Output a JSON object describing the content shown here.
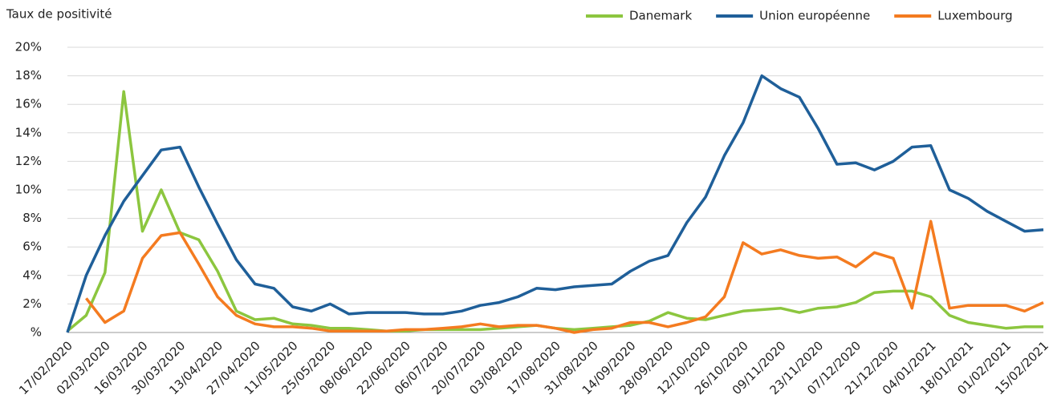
{
  "chart_data": {
    "type": "line",
    "ylabel": "Taux de positivité",
    "categories": [
      "17/02/2020",
      null,
      "02/03/2020",
      null,
      "16/03/2020",
      null,
      "30/03/2020",
      null,
      "13/04/2020",
      null,
      "27/04/2020",
      null,
      "11/05/2020",
      null,
      "25/05/2020",
      null,
      "08/06/2020",
      null,
      "22/06/2020",
      null,
      "06/07/2020",
      null,
      "20/07/2020",
      null,
      "03/08/2020",
      null,
      "17/08/2020",
      null,
      "31/08/2020",
      null,
      "14/09/2020",
      null,
      "28/09/2020",
      null,
      "12/10/2020",
      null,
      "26/10/2020",
      null,
      "09/11/2020",
      null,
      "23/11/2020",
      null,
      "07/12/2020",
      null,
      "21/12/2020",
      null,
      "04/01/2021",
      null,
      "18/01/2021",
      null,
      "01/02/2021",
      null,
      "15/02/2021"
    ],
    "series": [
      {
        "name": "Danemark",
        "color": "#8cc63f",
        "values": [
          0.1,
          1.2,
          4.2,
          16.9,
          7.1,
          10.0,
          7.0,
          6.5,
          4.3,
          1.5,
          0.9,
          1.0,
          0.6,
          0.5,
          0.3,
          0.3,
          0.2,
          0.1,
          0.1,
          0.2,
          0.2,
          0.2,
          0.2,
          0.3,
          0.4,
          0.5,
          0.3,
          0.2,
          0.3,
          0.4,
          0.5,
          0.8,
          1.4,
          1.0,
          0.9,
          1.2,
          1.5,
          1.6,
          1.7,
          1.4,
          1.7,
          1.8,
          2.1,
          2.8,
          2.9,
          2.9,
          2.5,
          1.2,
          0.7,
          0.5,
          0.3,
          0.4,
          0.4
        ]
      },
      {
        "name": "Union européenne",
        "color": "#1f5f99",
        "values": [
          0,
          4.0,
          6.8,
          9.2,
          11.0,
          12.8,
          13.0,
          10.2,
          7.6,
          5.1,
          3.4,
          3.1,
          1.8,
          1.5,
          2.0,
          1.3,
          1.4,
          1.4,
          1.4,
          1.3,
          1.3,
          1.5,
          1.9,
          2.1,
          2.5,
          3.1,
          3.0,
          3.2,
          3.3,
          3.4,
          4.3,
          5.0,
          5.4,
          7.7,
          9.5,
          12.4,
          14.7,
          18.0,
          17.1,
          16.5,
          14.3,
          11.8,
          11.9,
          11.4,
          12.0,
          13.0,
          13.1,
          10.0,
          9.4,
          8.5,
          7.8,
          7.1,
          7.2
        ]
      },
      {
        "name": "Luxembourg",
        "color": "#f47b20",
        "values": [
          null,
          2.4,
          0.7,
          1.5,
          5.2,
          6.8,
          7.0,
          4.8,
          2.5,
          1.2,
          0.6,
          0.4,
          0.4,
          0.3,
          0.1,
          0.1,
          0.1,
          0.1,
          0.2,
          0.2,
          0.3,
          0.4,
          0.6,
          0.4,
          0.5,
          0.5,
          0.3,
          0.0,
          0.2,
          0.3,
          0.7,
          0.7,
          0.4,
          0.7,
          1.1,
          2.5,
          6.3,
          5.5,
          5.8,
          5.4,
          5.2,
          5.3,
          4.6,
          5.6,
          5.2,
          1.7,
          7.8,
          1.7,
          1.9,
          1.9,
          1.9,
          1.5,
          2.1
        ]
      }
    ],
    "ylim": [
      0,
      20
    ],
    "yticks": [
      {
        "value": 0,
        "label": "%"
      },
      {
        "value": 2,
        "label": "2%"
      },
      {
        "value": 4,
        "label": "4%"
      },
      {
        "value": 6,
        "label": "6%"
      },
      {
        "value": 8,
        "label": "8%"
      },
      {
        "value": 10,
        "label": "10%"
      },
      {
        "value": 12,
        "label": "12%"
      },
      {
        "value": 14,
        "label": "14%"
      },
      {
        "value": 16,
        "label": "16%"
      },
      {
        "value": 18,
        "label": "18%"
      },
      {
        "value": 20,
        "label": "20%"
      }
    ],
    "grid": true,
    "legend": "top-right"
  }
}
